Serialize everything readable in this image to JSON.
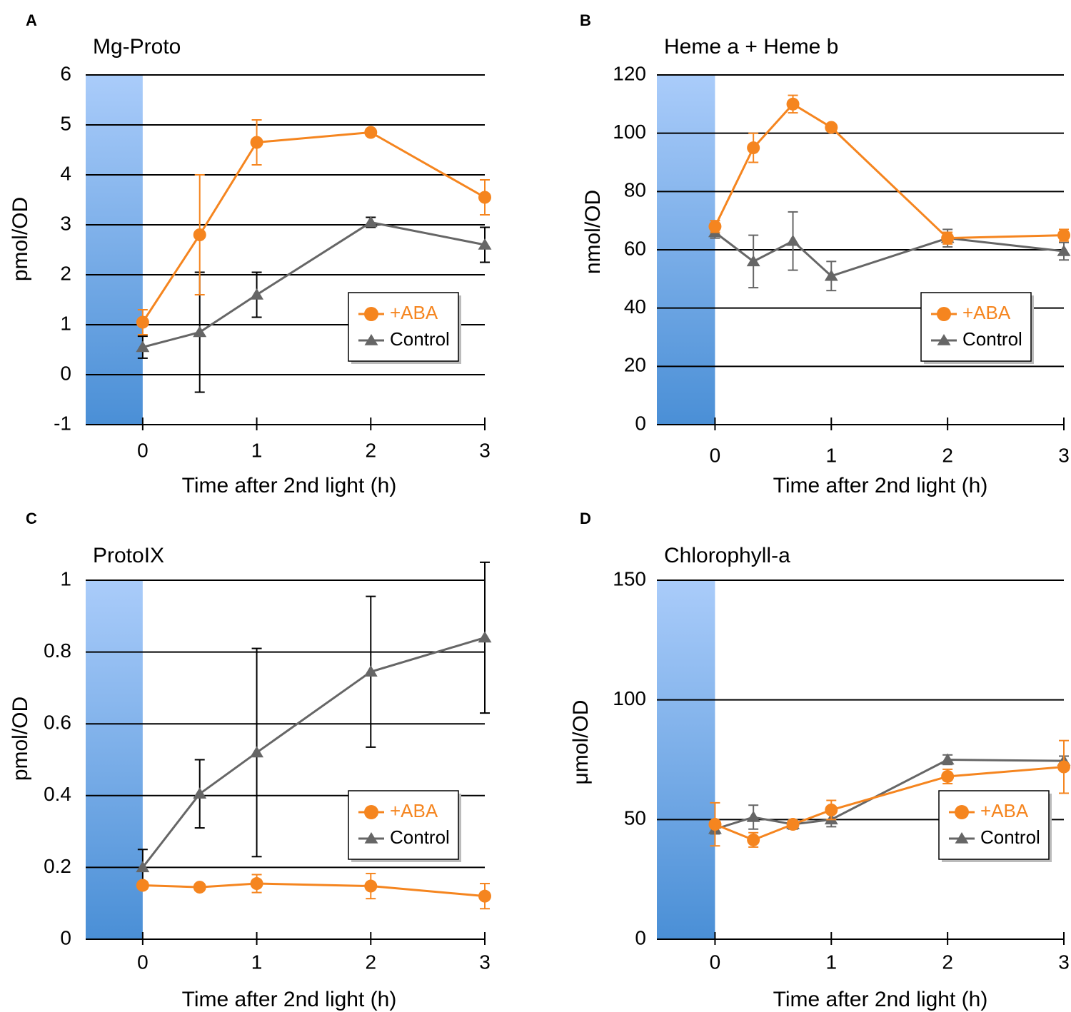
{
  "colors": {
    "aba": "#F5851F",
    "control": "#666666",
    "shade_top": "#AACCFA",
    "shade_bottom": "#4A8FD6"
  },
  "icons": {
    "aba_marker": "circle-icon",
    "control_marker": "triangle-icon"
  },
  "chart_data": [
    {
      "panel": "A",
      "type": "line",
      "title": "Mg-Proto",
      "xlabel": "Time after 2nd light (h)",
      "ylabel": "pmol/OD",
      "ylim": [
        -1,
        6
      ],
      "xlim": [
        -0.5,
        3
      ],
      "yticks": [
        -1,
        0,
        1,
        2,
        3,
        4,
        5,
        6
      ],
      "ytick_labels": [
        "-1",
        "0",
        "1",
        "2",
        "3",
        "4",
        "5",
        "6"
      ],
      "gridlines": [
        0,
        1,
        2,
        3,
        4,
        5,
        6
      ],
      "xticks": [
        0,
        1,
        2,
        3
      ],
      "xtick_labels": [
        "0",
        "1",
        "2",
        "3"
      ],
      "shaded_x": [
        -0.5,
        0
      ],
      "legend": {
        "position": "right",
        "aba": "+ABA",
        "control": "Control"
      },
      "series": [
        {
          "name": "+ABA",
          "key": "aba",
          "marker": "circle",
          "x": [
            0,
            0.5,
            1,
            2,
            3
          ],
          "y": [
            1.05,
            2.8,
            4.65,
            4.85,
            3.55
          ],
          "err": [
            0.25,
            1.2,
            0.45,
            0.05,
            0.35
          ]
        },
        {
          "name": "Control",
          "key": "control",
          "marker": "triangle",
          "x": [
            0,
            0.5,
            1,
            2,
            3
          ],
          "y": [
            0.55,
            0.85,
            1.6,
            3.05,
            2.6
          ],
          "err": [
            0.22,
            1.2,
            0.45,
            0.1,
            0.35
          ]
        }
      ]
    },
    {
      "panel": "B",
      "type": "line",
      "title": "Heme a + Heme b",
      "xlabel": "Time after 2nd light (h)",
      "ylabel": "nmol/OD",
      "ylim": [
        0,
        120
      ],
      "xlim": [
        -0.5,
        3
      ],
      "yticks": [
        0,
        20,
        40,
        60,
        80,
        100,
        120
      ],
      "ytick_labels": [
        "0",
        "20",
        "40",
        "60",
        "80",
        "100",
        "120"
      ],
      "gridlines": [
        20,
        40,
        60,
        80,
        100,
        120
      ],
      "xticks": [
        0,
        1,
        2,
        3
      ],
      "xtick_labels": [
        "0",
        "1",
        "2",
        "3"
      ],
      "shaded_x": [
        -0.5,
        0
      ],
      "legend": {
        "position": "right",
        "aba": "+ABA",
        "control": "Control"
      },
      "series": [
        {
          "name": "+ABA",
          "key": "aba",
          "marker": "circle",
          "x": [
            0,
            0.33,
            0.67,
            1,
            2,
            3
          ],
          "y": [
            68,
            95,
            110,
            102,
            64,
            65
          ],
          "err": [
            2,
            5,
            3,
            1,
            2,
            2
          ]
        },
        {
          "name": "Control",
          "key": "control",
          "marker": "triangle",
          "x": [
            0,
            0.33,
            0.67,
            1,
            2,
            3
          ],
          "y": [
            66,
            56,
            63,
            51,
            64,
            59.5
          ],
          "err": [
            2,
            9,
            10,
            5,
            3,
            3
          ]
        }
      ]
    },
    {
      "panel": "C",
      "type": "line",
      "title": "ProtoIX",
      "xlabel": "Time after 2nd light (h)",
      "ylabel": "pmol/OD",
      "ylim": [
        0,
        1
      ],
      "xlim": [
        -0.5,
        3
      ],
      "yticks": [
        0,
        0.2,
        0.4,
        0.6,
        0.8,
        1
      ],
      "ytick_labels": [
        "0",
        "0.2",
        "0.4",
        "0.6",
        "0.8",
        "1"
      ],
      "gridlines": [
        0.2,
        0.4,
        0.6,
        0.8,
        1
      ],
      "xticks": [
        0,
        1,
        2,
        3
      ],
      "xtick_labels": [
        "0",
        "1",
        "2",
        "3"
      ],
      "shaded_x": [
        -0.5,
        0
      ],
      "legend": {
        "position": "right",
        "aba": "+ABA",
        "control": "Control"
      },
      "series": [
        {
          "name": "+ABA",
          "key": "aba",
          "marker": "circle",
          "x": [
            0,
            0.5,
            1,
            2,
            3
          ],
          "y": [
            0.15,
            0.145,
            0.155,
            0.148,
            0.12
          ],
          "err": [
            0.01,
            0.01,
            0.025,
            0.035,
            0.035
          ]
        },
        {
          "name": "Control",
          "key": "control",
          "marker": "triangle",
          "x": [
            0,
            0.5,
            1,
            2,
            3
          ],
          "y": [
            0.2,
            0.405,
            0.52,
            0.745,
            0.84
          ],
          "err": [
            0.05,
            0.095,
            0.29,
            0.21,
            0.21
          ]
        }
      ]
    },
    {
      "panel": "D",
      "type": "line",
      "title": "Chlorophyll-a",
      "xlabel": "Time after 2nd light (h)",
      "ylabel": "μmol/OD",
      "ylim": [
        0,
        150
      ],
      "xlim": [
        -0.5,
        3
      ],
      "yticks": [
        0,
        50,
        100,
        150
      ],
      "ytick_labels": [
        "0",
        "50",
        "100",
        "150"
      ],
      "gridlines": [
        50,
        100,
        150
      ],
      "xticks": [
        0,
        1,
        2,
        3
      ],
      "xtick_labels": [
        "0",
        "1",
        "2",
        "3"
      ],
      "shaded_x": [
        -0.5,
        0
      ],
      "legend": {
        "position": "right",
        "aba": "+ABA",
        "control": "Control"
      },
      "series": [
        {
          "name": "+ABA",
          "key": "aba",
          "marker": "circle",
          "x": [
            0,
            0.33,
            0.67,
            1,
            2,
            3
          ],
          "y": [
            48,
            41.5,
            48,
            54,
            68,
            72
          ],
          "err": [
            9,
            3,
            1,
            4,
            3,
            11
          ]
        },
        {
          "name": "Control",
          "key": "control",
          "marker": "triangle",
          "x": [
            0,
            0.33,
            0.67,
            1,
            2,
            3
          ],
          "y": [
            46,
            51,
            48,
            50,
            75,
            74.5
          ],
          "err": [
            2,
            5,
            2,
            3,
            2,
            2
          ]
        }
      ]
    }
  ]
}
